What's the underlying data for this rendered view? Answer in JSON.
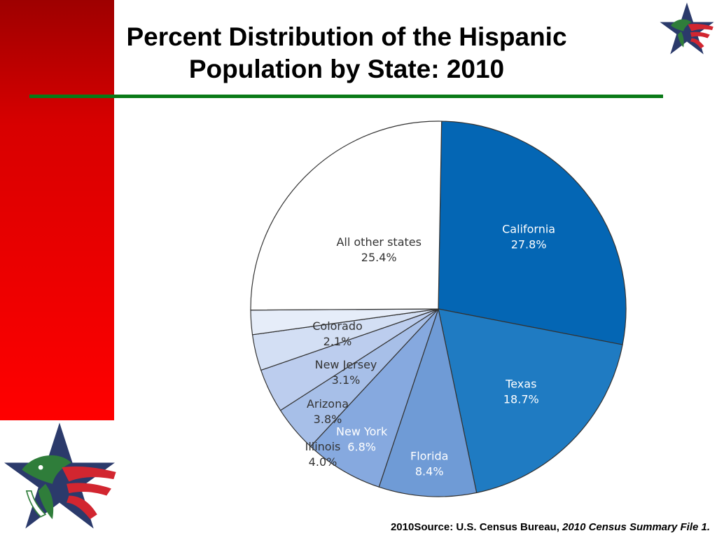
{
  "slide": {
    "title_line_1": "Percent Distribution of the Hispanic",
    "title_line_2": "Population by State: 2010",
    "source_prefix": "2010Source: U.S. Census Bureau, ",
    "source_italic": "2010 Census Summary File 1.",
    "colors": {
      "band": "#e00000",
      "rule": "#0a7a17",
      "logo_star_blue": "#2b3a6b",
      "logo_red": "#d22630",
      "logo_green": "#2f7d3a"
    }
  },
  "chart_data": {
    "type": "pie",
    "title": "",
    "slices": [
      {
        "label": "California",
        "value_label": "27.8%",
        "value": 27.8,
        "color": "#0466b4",
        "text_color": "#ffffff"
      },
      {
        "label": "Texas",
        "value_label": "18.7%",
        "value": 18.7,
        "color": "#1f7bc2",
        "text_color": "#ffffff"
      },
      {
        "label": "Florida",
        "value_label": "8.4%",
        "value": 8.4,
        "color": "#6f9bd6",
        "text_color": "#ffffff"
      },
      {
        "label": "New York",
        "value_label": "6.8%",
        "value": 6.8,
        "color": "#86a9df",
        "text_color": "#ffffff"
      },
      {
        "label": "Illinois",
        "value_label": "4.0%",
        "value": 4.0,
        "color": "#a7bfe8",
        "text_color": "#333333"
      },
      {
        "label": "Arizona",
        "value_label": "3.8%",
        "value": 3.8,
        "color": "#bccdee",
        "text_color": "#333333"
      },
      {
        "label": "New Jersey",
        "value_label": "3.1%",
        "value": 3.1,
        "color": "#d3dff4",
        "text_color": "#333333"
      },
      {
        "label": "Colorado",
        "value_label": "2.1%",
        "value": 2.1,
        "color": "#e6edf9",
        "text_color": "#333333"
      },
      {
        "label": "All other states",
        "value_label": "25.4%",
        "value": 25.4,
        "color": "#ffffff",
        "text_color": "#333333"
      }
    ]
  }
}
